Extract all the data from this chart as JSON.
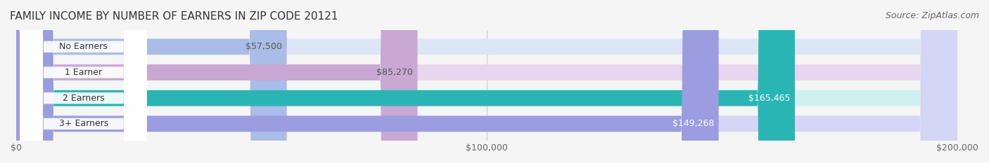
{
  "title": "FAMILY INCOME BY NUMBER OF EARNERS IN ZIP CODE 20121",
  "source": "Source: ZipAtlas.com",
  "categories": [
    "No Earners",
    "1 Earner",
    "2 Earners",
    "3+ Earners"
  ],
  "values": [
    57500,
    85270,
    165465,
    149268
  ],
  "value_labels": [
    "$57,500",
    "$85,270",
    "$165,465",
    "$149,268"
  ],
  "bar_colors": [
    "#aabde8",
    "#c9a8d4",
    "#2ab5b5",
    "#9b9de0"
  ],
  "bar_bg_colors": [
    "#dce6f5",
    "#e8d5ef",
    "#d0f0f0",
    "#d5d5f5"
  ],
  "label_colors": [
    "#555555",
    "#555555",
    "#ffffff",
    "#ffffff"
  ],
  "x_max": 200000,
  "x_ticks": [
    0,
    100000,
    200000
  ],
  "x_tick_labels": [
    "$0",
    "$100,000",
    "$200,000"
  ],
  "bg_color": "#f5f5f5",
  "bar_bg_color": "#e8e8f0",
  "title_fontsize": 11,
  "source_fontsize": 9,
  "label_fontsize": 9,
  "tick_fontsize": 9
}
